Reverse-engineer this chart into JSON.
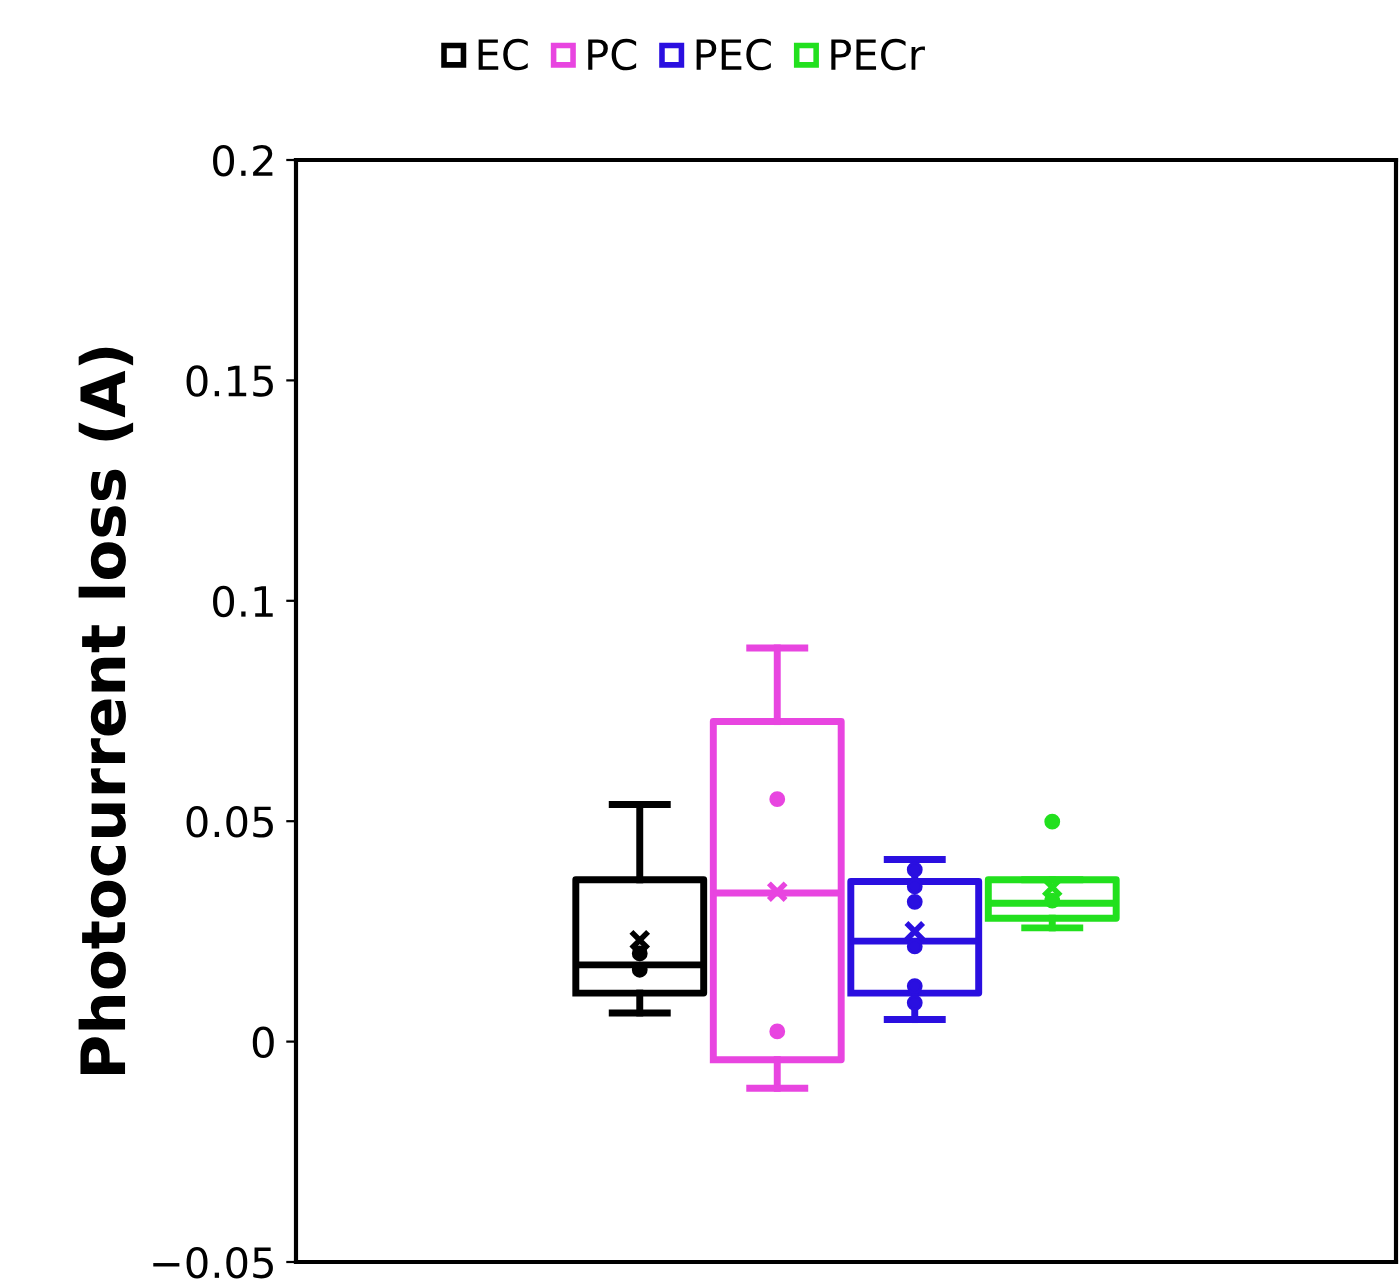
{
  "chart_data": {
    "type": "box",
    "ylabel": "Photocurrent loss (A)",
    "categories": [
      null,
      null,
      null,
      null,
      null,
      null,
      null,
      null
    ],
    "series": [
      {
        "name": "EC",
        "color": "#000000",
        "boxes": [
          null,
          null,
          {
            "low": 0.0065,
            "q1": 0.011,
            "median": 0.0174,
            "q3": 0.0367,
            "high": 0.0538,
            "mean": 0.023,
            "outliers": [
              0.02,
              0.0163
            ]
          },
          null,
          null,
          null,
          null,
          null
        ]
      },
      {
        "name": "PC",
        "color": "#e845e0",
        "boxes": [
          null,
          null,
          null,
          {
            "low": -0.0106,
            "q1": -0.0041,
            "median": 0.0337,
            "q3": 0.0726,
            "high": 0.0893,
            "mean": 0.034,
            "outliers": [
              0.055,
              0.0023
            ]
          },
          null,
          null,
          null,
          null
        ]
      },
      {
        "name": "PEC",
        "color": "#2a0fe0",
        "boxes": [
          null,
          null,
          null,
          null,
          {
            "low": 0.005,
            "q1": 0.011,
            "median": 0.0228,
            "q3": 0.0363,
            "high": 0.0413,
            "mean": 0.025,
            "outliers": [
              0.039,
              0.0352,
              0.0317,
              0.0216,
              0.0126,
              0.0088
            ]
          },
          null,
          null,
          null
        ]
      },
      {
        "name": "PECr",
        "color": "#22e01e",
        "boxes": [
          null,
          null,
          null,
          null,
          null,
          {
            "low": 0.0258,
            "q1": 0.028,
            "median": 0.0314,
            "q3": 0.0367,
            "high": 0.0367,
            "mean": 0.035,
            "outliers": [
              0.0499,
              0.032
            ]
          },
          null,
          null
        ]
      }
    ],
    "ylim": [
      -0.05,
      0.2
    ],
    "yticks": [
      {
        "value": -0.05,
        "label": "−0.05"
      },
      0,
      0.05,
      0.1,
      0.15,
      0.2
    ],
    "legend": "top",
    "grid": false
  }
}
